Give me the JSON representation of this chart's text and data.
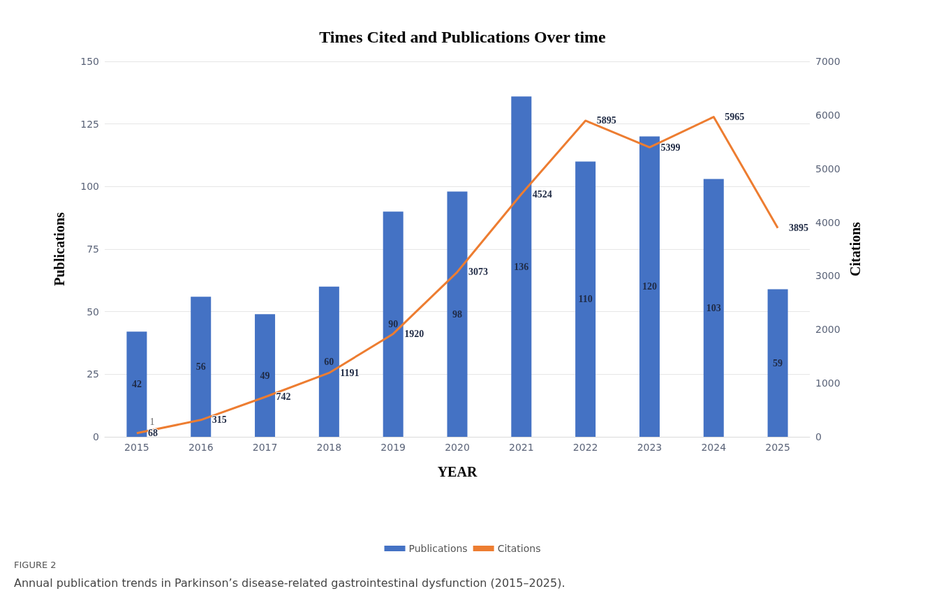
{
  "chart_data": {
    "type": "bar",
    "title": "Times Cited and Publications Over time",
    "xlabel": "YEAR",
    "ylabel": "Publications",
    "y2label": "Citations",
    "categories": [
      "2015",
      "2016",
      "2017",
      "2018",
      "2019",
      "2020",
      "2021",
      "2022",
      "2023",
      "2024",
      "2025"
    ],
    "series": [
      {
        "name": "Publications",
        "type": "bar",
        "color": "#4472c4",
        "values": [
          42,
          56,
          49,
          60,
          90,
          98,
          136,
          110,
          120,
          103,
          59
        ]
      },
      {
        "name": "Citations",
        "type": "line",
        "axis": "y2",
        "color": "#ed7d31",
        "values": [
          68,
          315,
          742,
          1191,
          1920,
          3073,
          4524,
          5895,
          5399,
          5965,
          3895
        ]
      }
    ],
    "ylim": [
      0,
      150
    ],
    "yticks": [
      0,
      25,
      50,
      75,
      100,
      125,
      150
    ],
    "y2lim": [
      0,
      7000
    ],
    "y2ticks": [
      0,
      1000,
      2000,
      3000,
      4000,
      5000,
      6000,
      7000
    ],
    "grid": "y",
    "legend": "bottom",
    "marker": "none",
    "line_style": "solid",
    "data_labels": true,
    "annotations": [
      "FIGURE 2",
      "Annual publication trends in Parkinson’s disease-related gastrointestinal dysfunction (2015–2025).",
      "1"
    ]
  }
}
